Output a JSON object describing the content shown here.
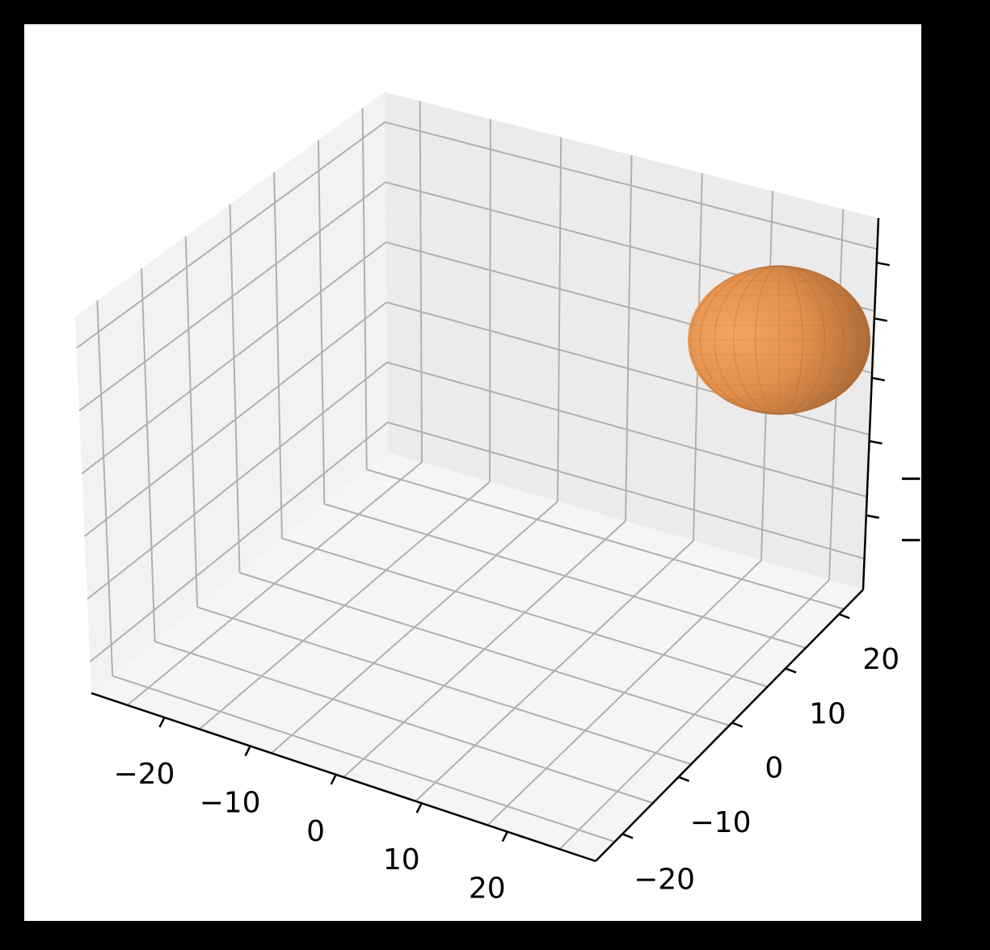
{
  "chart_data": {
    "type": "surface3d",
    "title": "",
    "xlabel": "",
    "ylabel": "",
    "zlabel": "",
    "x_ticks": [
      "−20",
      "−10",
      "0",
      "10",
      "20"
    ],
    "y_ticks": [
      "−20",
      "−10",
      "0",
      "10",
      "20"
    ],
    "z_ticks_visible": [
      "−",
      "−"
    ],
    "grid": true,
    "colors": {
      "figure_background": "#000000",
      "axes_background": "#ffffff",
      "pane_left": "#f2f2f2",
      "pane_back": "#ebebeb",
      "pane_floor": "#f5f5f5",
      "grid": "#b0b0b0",
      "axis_line": "#000000",
      "surface_light": "#f4a660",
      "surface_mid": "#e08f4c",
      "surface_dark": "#9a5c2f"
    },
    "surface": {
      "shape": "ellipsoid",
      "color_name": "sandybrown"
    }
  }
}
